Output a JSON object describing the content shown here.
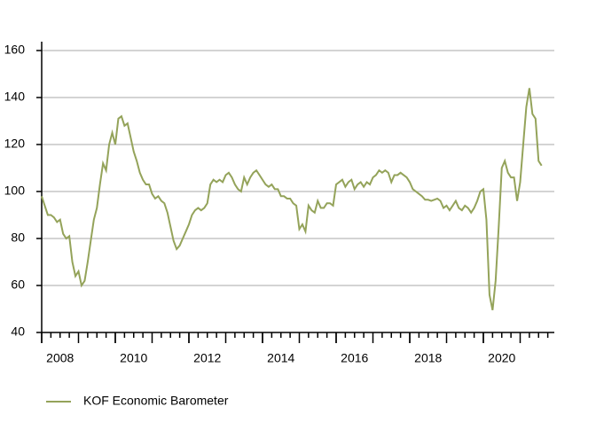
{
  "chart_data": {
    "type": "line",
    "x": [
      2008,
      2008.083,
      2008.167,
      2008.25,
      2008.333,
      2008.417,
      2008.5,
      2008.583,
      2008.667,
      2008.75,
      2008.833,
      2008.917,
      2009,
      2009.083,
      2009.167,
      2009.25,
      2009.333,
      2009.417,
      2009.5,
      2009.583,
      2009.667,
      2009.75,
      2009.833,
      2009.917,
      2010,
      2010.083,
      2010.167,
      2010.25,
      2010.333,
      2010.417,
      2010.5,
      2010.583,
      2010.667,
      2010.75,
      2010.833,
      2010.917,
      2011,
      2011.083,
      2011.167,
      2011.25,
      2011.333,
      2011.417,
      2011.5,
      2011.583,
      2011.667,
      2011.75,
      2011.833,
      2011.917,
      2012,
      2012.083,
      2012.167,
      2012.25,
      2012.333,
      2012.417,
      2012.5,
      2012.583,
      2012.667,
      2012.75,
      2012.833,
      2012.917,
      2013,
      2013.083,
      2013.167,
      2013.25,
      2013.333,
      2013.417,
      2013.5,
      2013.583,
      2013.667,
      2013.75,
      2013.833,
      2013.917,
      2014,
      2014.083,
      2014.167,
      2014.25,
      2014.333,
      2014.417,
      2014.5,
      2014.583,
      2014.667,
      2014.75,
      2014.833,
      2014.917,
      2015,
      2015.083,
      2015.167,
      2015.25,
      2015.333,
      2015.417,
      2015.5,
      2015.583,
      2015.667,
      2015.75,
      2015.833,
      2015.917,
      2016,
      2016.083,
      2016.167,
      2016.25,
      2016.333,
      2016.417,
      2016.5,
      2016.583,
      2016.667,
      2016.75,
      2016.833,
      2016.917,
      2017,
      2017.083,
      2017.167,
      2017.25,
      2017.333,
      2017.417,
      2017.5,
      2017.583,
      2017.667,
      2017.75,
      2017.833,
      2017.917,
      2018,
      2018.083,
      2018.167,
      2018.25,
      2018.333,
      2018.417,
      2018.5,
      2018.583,
      2018.667,
      2018.75,
      2018.833,
      2018.917,
      2019,
      2019.083,
      2019.167,
      2019.25,
      2019.333,
      2019.417,
      2019.5,
      2019.583,
      2019.667,
      2019.75,
      2019.833,
      2019.917,
      2020,
      2020.083,
      2020.167,
      2020.25,
      2020.333,
      2020.417,
      2020.5,
      2020.583,
      2020.667,
      2020.75,
      2020.833,
      2020.917,
      2021,
      2021.083,
      2021.167,
      2021.25,
      2021.333,
      2021.417,
      2021.5,
      2021.583
    ],
    "series": [
      {
        "name": "KOF Economic Barometer",
        "color": "#94a35a",
        "values": [
          98,
          94,
          90,
          90,
          89,
          87,
          88,
          82,
          80,
          81,
          70,
          64,
          66,
          60,
          62,
          70,
          79,
          88,
          93,
          103,
          112,
          109,
          120,
          125,
          120,
          131,
          132,
          128,
          129,
          123,
          117,
          113,
          108,
          105,
          103,
          103,
          99,
          97,
          98,
          96,
          95,
          91,
          85,
          79,
          75.5,
          77,
          80,
          83,
          86,
          90,
          92,
          93,
          92,
          93,
          95,
          103,
          105,
          104,
          105,
          104,
          107,
          108,
          106,
          103,
          101,
          100,
          106,
          103,
          106,
          108,
          109,
          107,
          105,
          103,
          102,
          103,
          101,
          101,
          98,
          98,
          97,
          97,
          95,
          94,
          84,
          86,
          83,
          94,
          92,
          91,
          96,
          93,
          93,
          95,
          95,
          94,
          103,
          104,
          105,
          102,
          104,
          105,
          101,
          103,
          104,
          102,
          104,
          103,
          106,
          107,
          109,
          108,
          109,
          108,
          104,
          107,
          107,
          108,
          107,
          106,
          104,
          101,
          100,
          99,
          98,
          96.5,
          96.5,
          96,
          96.5,
          97,
          96,
          93,
          94,
          92,
          94,
          96,
          93,
          92,
          94,
          93,
          91,
          93,
          96,
          100,
          101,
          88,
          56,
          49.5,
          62,
          85,
          110,
          113,
          108,
          106,
          106,
          96,
          104,
          120,
          136,
          144,
          133,
          131,
          113,
          111
        ]
      }
    ],
    "xlim": [
      2008,
      2022
    ],
    "xticks": [
      2008,
      2010,
      2012,
      2014,
      2016,
      2018,
      2020
    ],
    "ylim": [
      40,
      160
    ],
    "yticks": [
      40,
      60,
      80,
      100,
      120,
      140,
      160
    ],
    "grid": true
  }
}
